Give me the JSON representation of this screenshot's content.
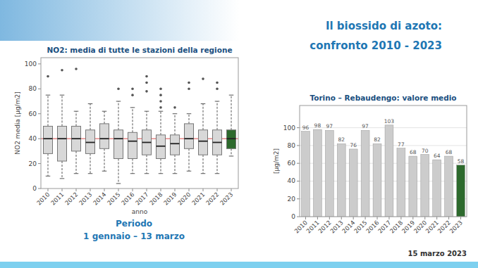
{
  "title": "Il biossido di azoto:",
  "subtitle": "confronto 2010 - 2023",
  "annotations": [
    "Periodo",
    "1 gennaio – 13 marzo",
    "15 marzo 2023"
  ],
  "chart_data": [
    {
      "type": "box",
      "title": "NO2: media di tutte le stazioni della regione",
      "xlabel": "anno",
      "ylabel": "NO2 media  [µg/m2]",
      "categories": [
        "2010",
        "2011",
        "2012",
        "2013",
        "2014",
        "2015",
        "2016",
        "2017",
        "2018",
        "2019",
        "2020",
        "2021",
        "2022",
        "2023"
      ],
      "median": [
        40,
        40,
        40,
        37,
        40,
        40,
        38,
        37,
        34,
        36,
        40,
        38,
        37,
        40
      ],
      "q1": [
        28,
        22,
        30,
        28,
        32,
        24,
        24,
        27,
        24,
        27,
        32,
        27,
        27,
        32
      ],
      "q3": [
        50,
        50,
        50,
        47,
        52,
        47,
        45,
        47,
        43,
        43,
        52,
        47,
        47,
        47
      ],
      "whislo": [
        10,
        8,
        12,
        12,
        14,
        4,
        12,
        12,
        12,
        12,
        14,
        12,
        12,
        26
      ],
      "whishi": [
        75,
        75,
        62,
        68,
        62,
        70,
        65,
        62,
        62,
        60,
        60,
        68,
        70,
        75
      ],
      "fliers": [
        [
          90
        ],
        [
          95
        ],
        [
          96
        ],
        [],
        [],
        [
          80
        ],
        [
          75,
          80
        ],
        [
          78,
          85,
          90
        ],
        [
          65,
          70,
          75,
          80
        ],
        [
          65
        ],
        [
          80,
          85
        ],
        [
          88
        ],
        [
          80,
          85
        ],
        []
      ],
      "colors": [
        "#d8d8d8",
        "#d8d8d8",
        "#d8d8d8",
        "#d8d8d8",
        "#d8d8d8",
        "#d8d8d8",
        "#d8d8d8",
        "#d8d8d8",
        "#d8d8d8",
        "#d8d8d8",
        "#d8d8d8",
        "#d8d8d8",
        "#d8d8d8",
        "#2d6a2d"
      ],
      "ref_line": {
        "value": 40,
        "color": "#e07070"
      },
      "ylim": [
        0,
        105
      ],
      "yticks": [
        0,
        20,
        40,
        60,
        80,
        100
      ],
      "grid": false
    },
    {
      "type": "bar",
      "title": "Torino – Rebaudengo: valore medio",
      "ylabel": "[µg/m2]",
      "categories": [
        "2010",
        "2011",
        "2012",
        "2013",
        "2014",
        "2015",
        "2016",
        "2017",
        "2018",
        "2019",
        "2020",
        "2021",
        "2022",
        "2023"
      ],
      "values": [
        96,
        98,
        97,
        82,
        76,
        97,
        82,
        103,
        77,
        68,
        70,
        64,
        68,
        58
      ],
      "colors": [
        "#cccccc",
        "#cccccc",
        "#cccccc",
        "#cccccc",
        "#cccccc",
        "#cccccc",
        "#cccccc",
        "#cccccc",
        "#cccccc",
        "#cccccc",
        "#cccccc",
        "#cccccc",
        "#cccccc",
        "#2d6a2d"
      ],
      "ylim": [
        0,
        125
      ],
      "yticks": [
        0,
        20,
        40,
        60,
        80,
        100
      ],
      "data_labels": true,
      "grid": true
    }
  ]
}
